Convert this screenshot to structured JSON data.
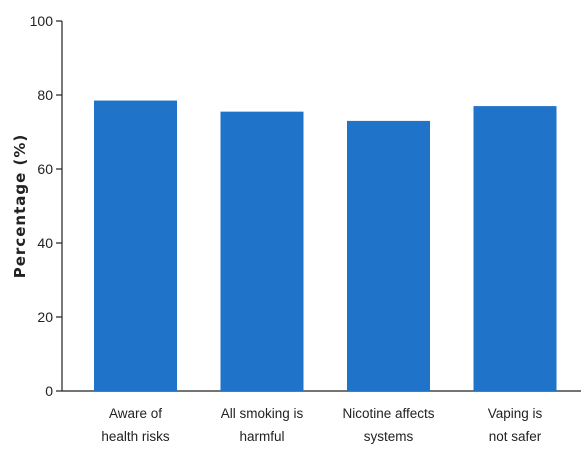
{
  "chart_data": {
    "type": "bar",
    "categories": [
      [
        "Aware of",
        "health risks"
      ],
      [
        "All smoking is",
        "harmful"
      ],
      [
        "Nicotine affects",
        "systems"
      ],
      [
        "Vaping is",
        "not safer"
      ]
    ],
    "values": [
      78.5,
      75.5,
      73,
      77
    ],
    "ylabel": "Percentage (%)",
    "yticks": [
      "0",
      "20",
      "40",
      "60",
      "80",
      "100"
    ],
    "ylim": [
      0,
      100
    ],
    "grid": false,
    "bar_color": "#1f73c8"
  }
}
